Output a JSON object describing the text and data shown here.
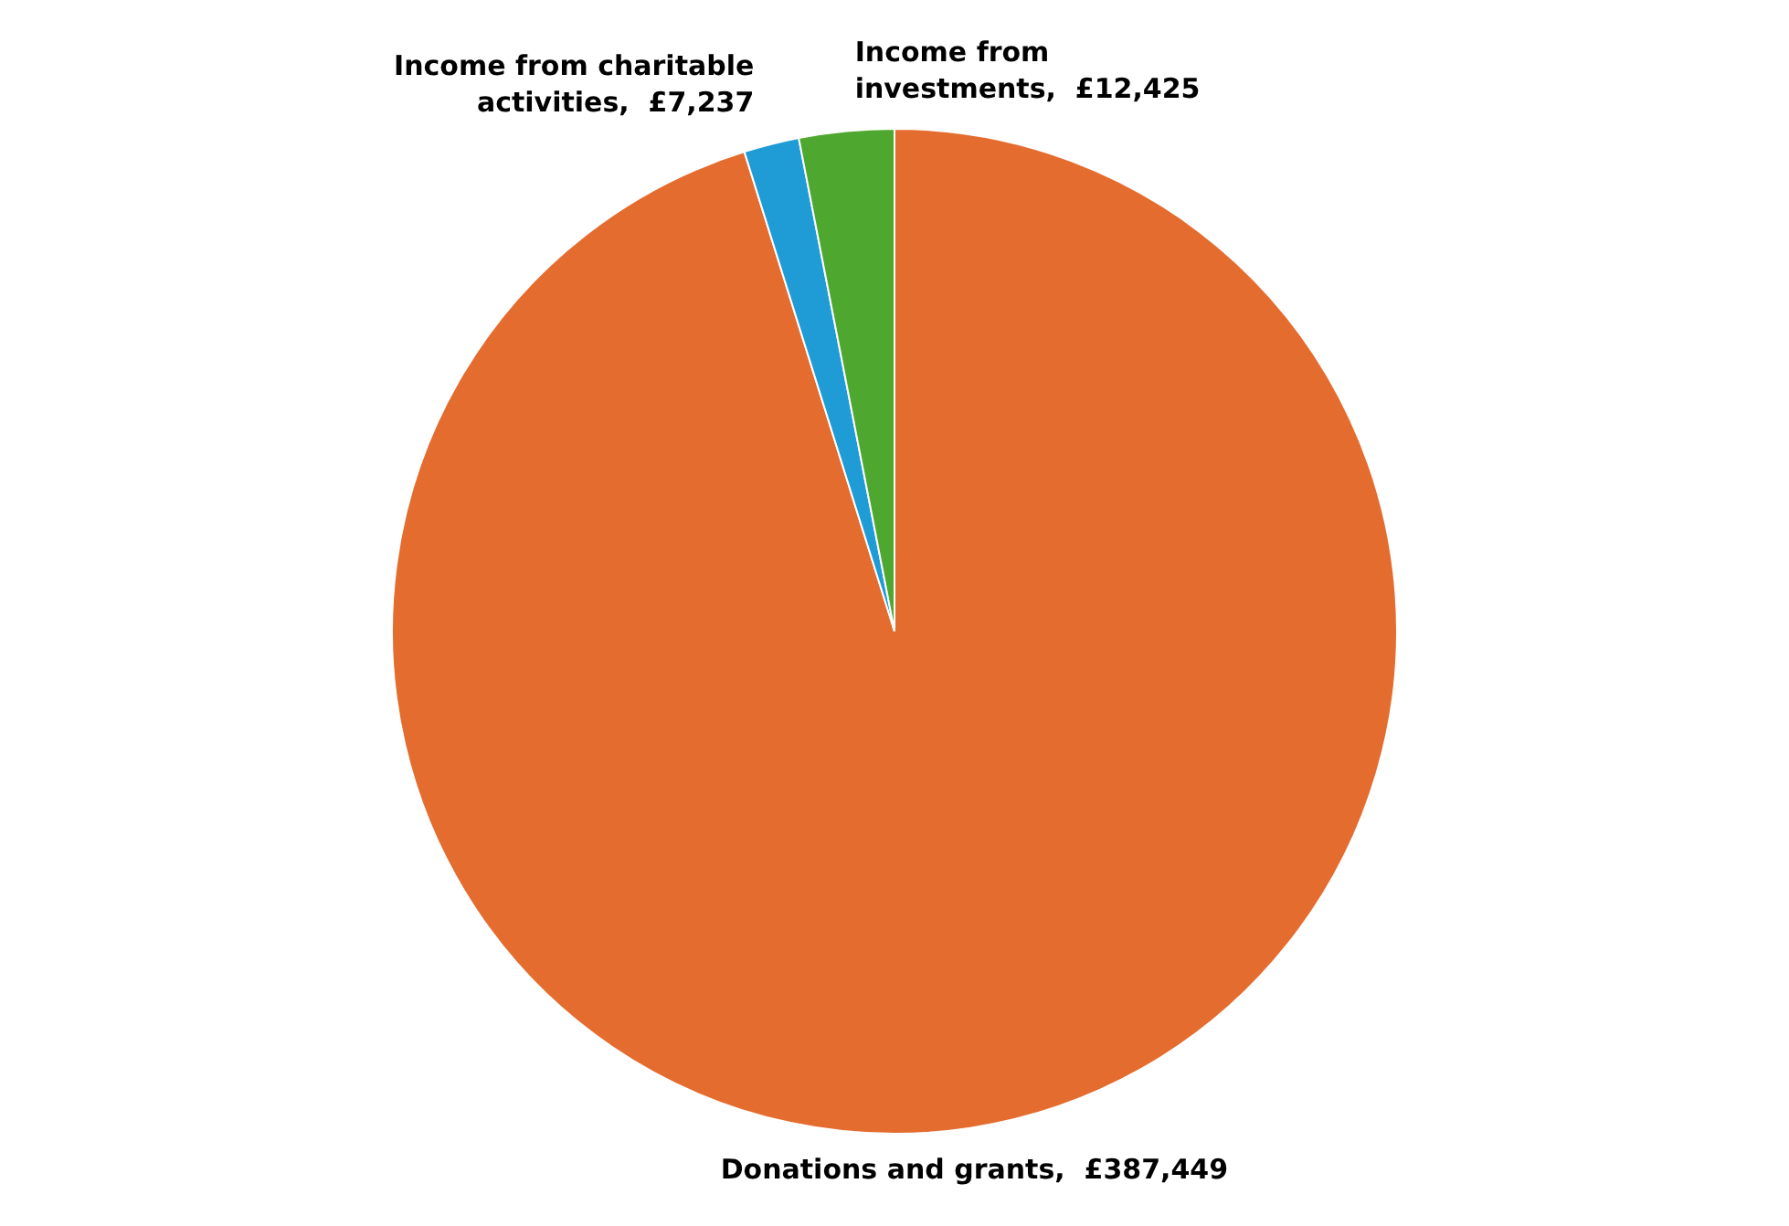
{
  "chart_data": {
    "type": "pie",
    "categories": [
      "Donations and grants",
      "Income from charitable activities",
      "Income from investments"
    ],
    "values": [
      387449,
      7237,
      12425
    ],
    "colors": [
      "#e46c2f",
      "#1f9bd6",
      "#4ea72e"
    ],
    "value_labels": [
      "£387,449",
      "£7,237",
      "£12,425"
    ]
  }
}
